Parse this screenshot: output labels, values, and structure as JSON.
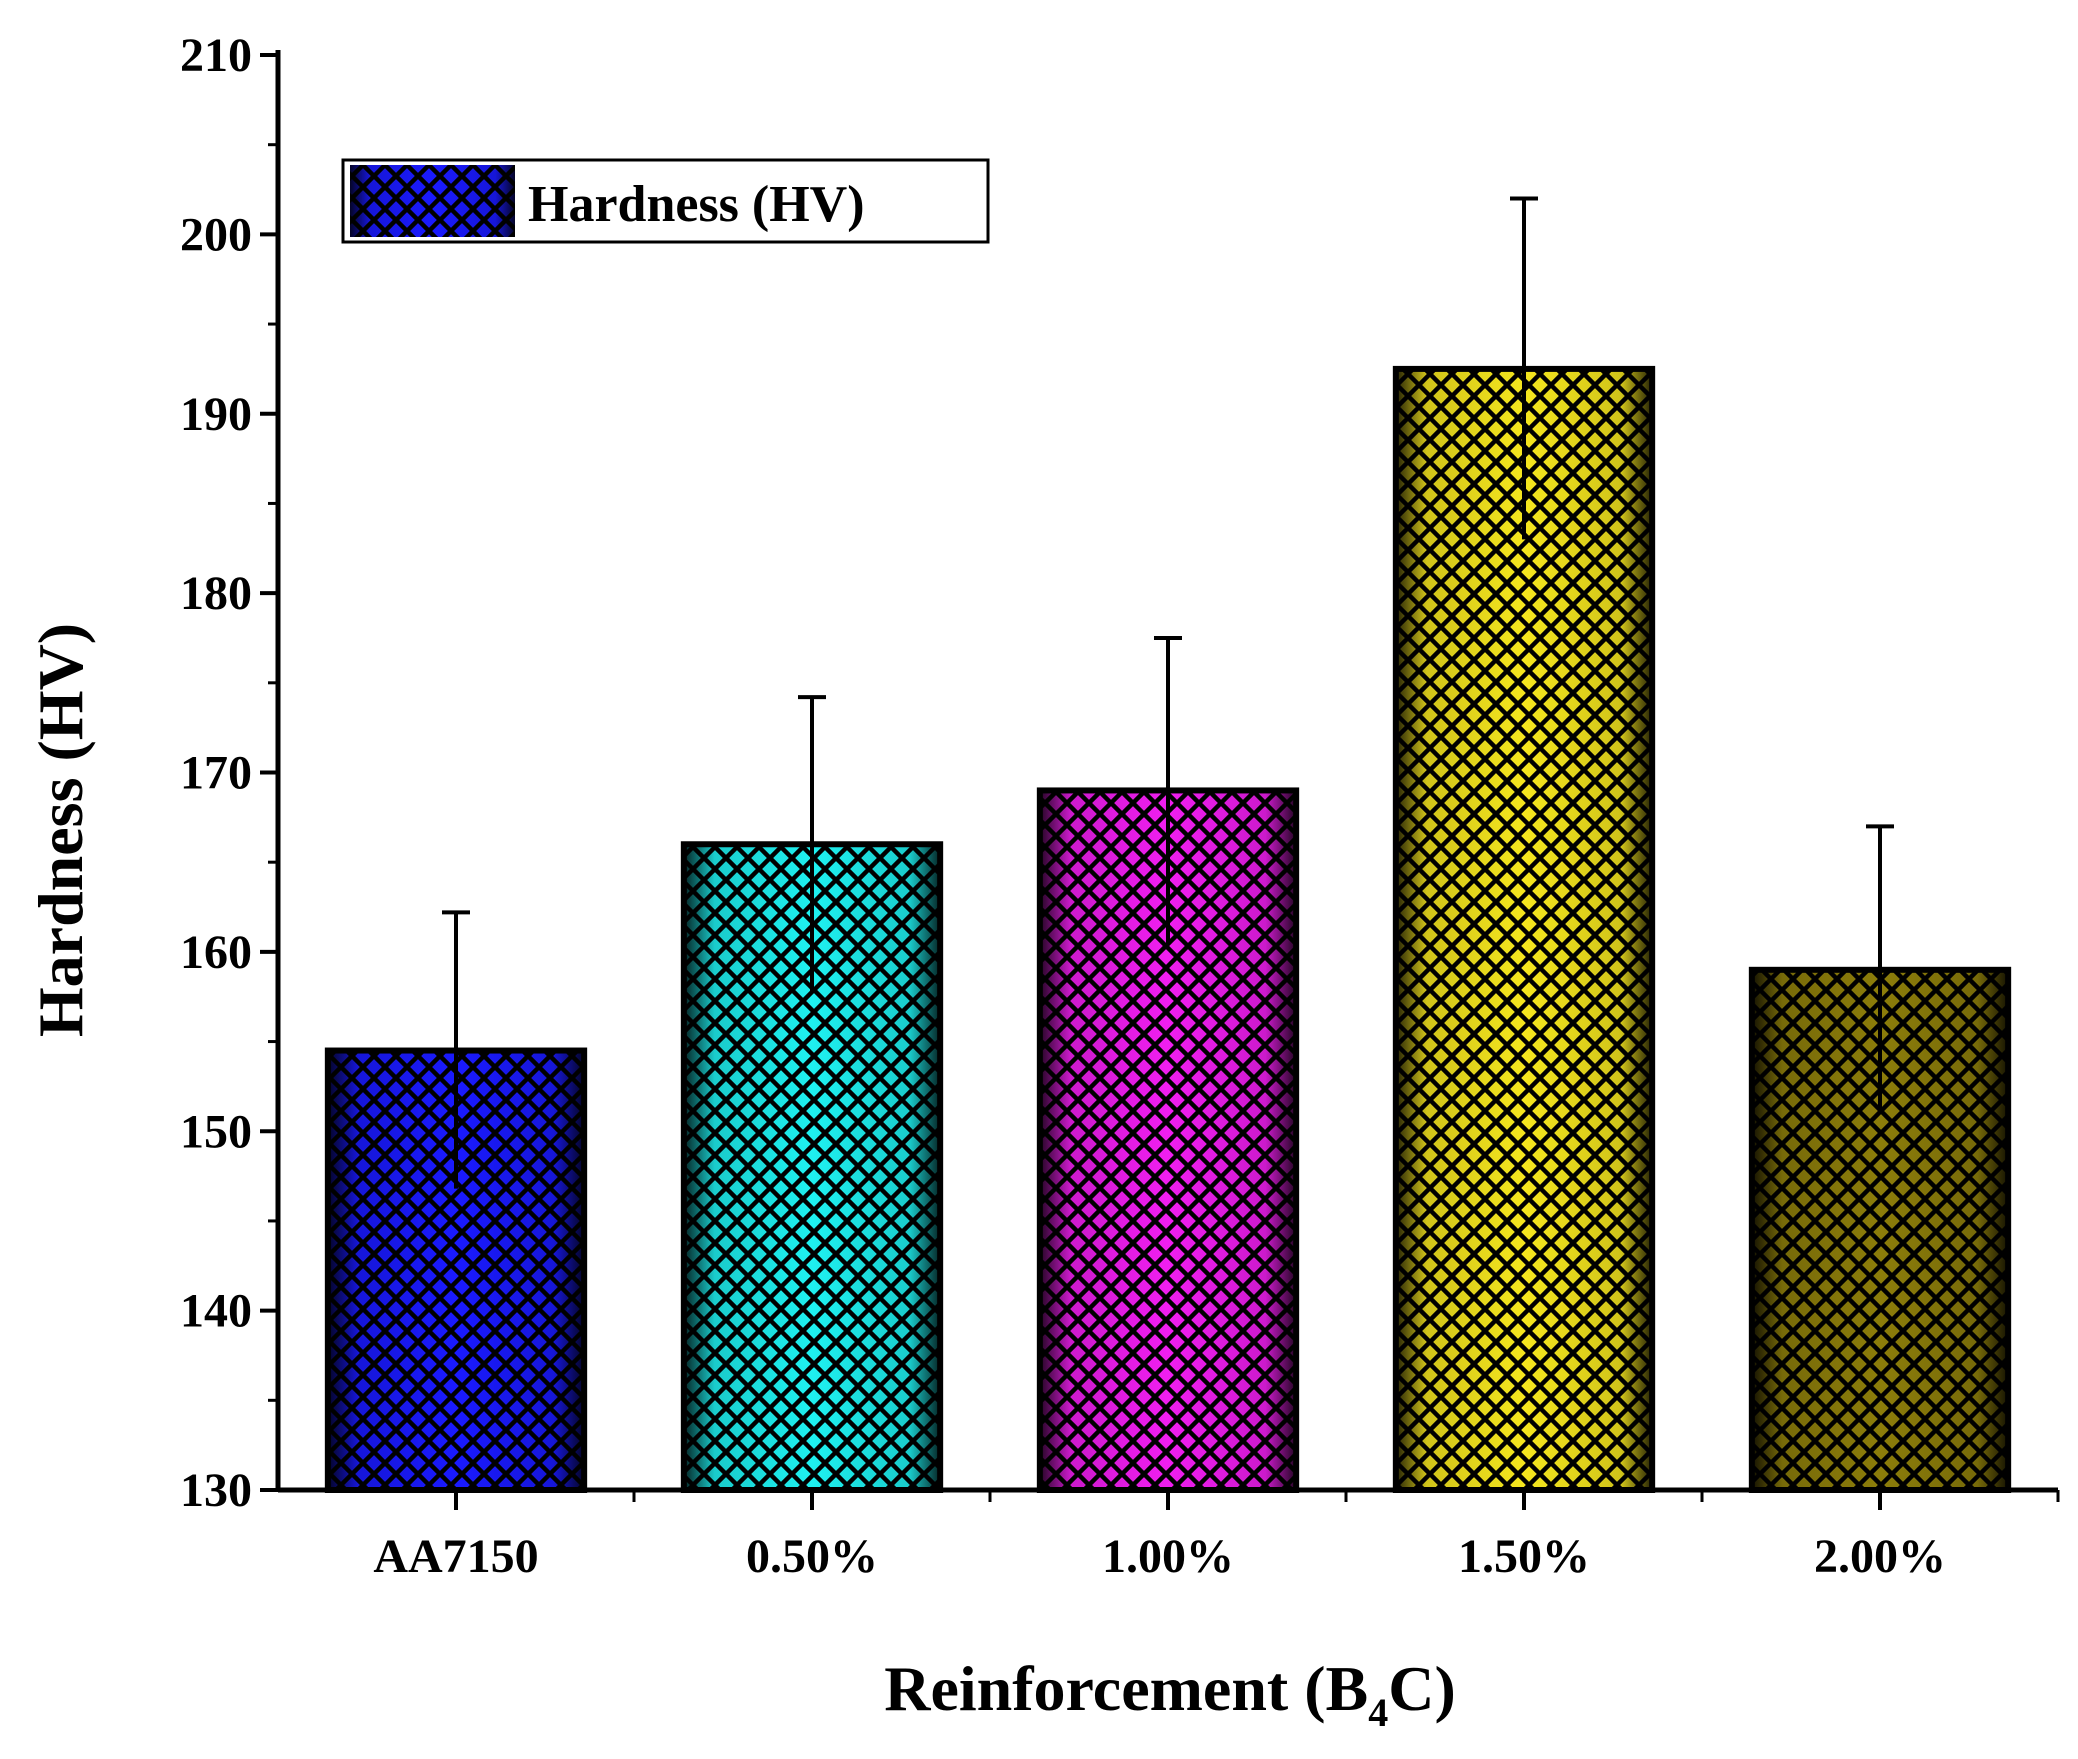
{
  "chart_data": {
    "type": "bar",
    "categories": [
      "AA7150",
      "0.50%",
      "1.00%",
      "1.50%",
      "2.00%"
    ],
    "series": [
      {
        "name": "Hardness (HV)",
        "values": [
          154.5,
          166,
          169,
          192.5,
          159
        ],
        "errors": [
          7.7,
          8.2,
          8.5,
          9.5,
          8.0
        ]
      }
    ],
    "bar_colors": [
      "#1a1aff",
      "#1ef0f0",
      "#f01ef0",
      "#f5e61e",
      "#8c7d0a"
    ],
    "title": "",
    "xlabel_main": "Reinforcement (B",
    "xlabel_sub": "4",
    "xlabel_end": "C)",
    "ylabel": "Hardness (HV)",
    "ylim": [
      130,
      210
    ],
    "yticks": [
      "130",
      "140",
      "150",
      "160",
      "170",
      "180",
      "190",
      "200",
      "210"
    ],
    "legend": {
      "label": "Hardness (HV)",
      "position": "top-left"
    }
  }
}
